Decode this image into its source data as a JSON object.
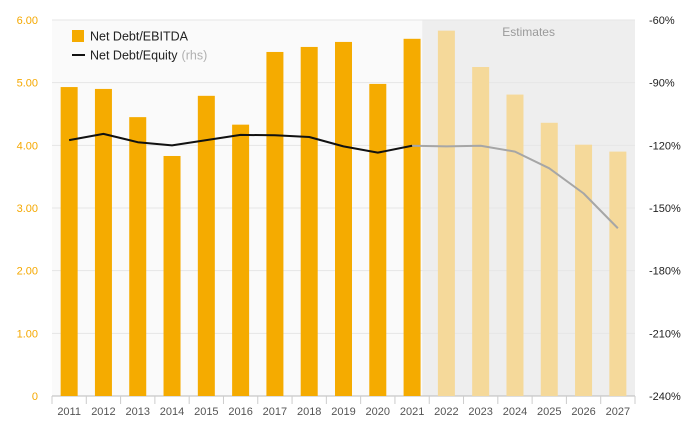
{
  "chart_data": {
    "type": "bar+line",
    "title": "",
    "categories": [
      "2011",
      "2012",
      "2013",
      "2014",
      "2015",
      "2016",
      "2017",
      "2018",
      "2019",
      "2020",
      "2021",
      "2022",
      "2023",
      "2024",
      "2025",
      "2026",
      "2027"
    ],
    "estimate_start_index": 11,
    "estimates_label": "Estimates",
    "series": [
      {
        "name": "Net Debt/EBITDA",
        "type": "bar",
        "axis": "left",
        "values": [
          4.93,
          4.9,
          4.45,
          3.83,
          4.79,
          4.33,
          5.49,
          5.57,
          5.65,
          4.98,
          5.7,
          5.83,
          5.25,
          4.81,
          4.36,
          4.01,
          3.9
        ],
        "color": "#f5ab00",
        "estimate_color": "#f5d99a"
      },
      {
        "name": "Net Debt/Equity",
        "name_suffix": "(rhs)",
        "type": "line",
        "axis": "right",
        "values": [
          -117.5,
          -114.5,
          -118.5,
          -120,
          -117.5,
          -115,
          -115.2,
          -116,
          -120.5,
          -123.5,
          -120.2,
          -120.5,
          -120.2,
          -123,
          -131,
          -143,
          -159.7
        ],
        "color": "#111111",
        "estimate_color": "#a6a6a6"
      }
    ],
    "y_left": {
      "lim": [
        0,
        6
      ],
      "ticks": [
        0,
        1,
        2,
        3,
        4,
        5,
        6
      ],
      "tick_labels": [
        "0",
        "1.00",
        "2.00",
        "3.00",
        "4.00",
        "5.00",
        "6.00"
      ],
      "color": "#f5a800"
    },
    "y_right": {
      "lim": [
        -240,
        -60
      ],
      "ticks": [
        -60,
        -90,
        -120,
        -150,
        -180,
        -210,
        -240
      ],
      "tick_labels": [
        "-60%",
        "-90%",
        "-120%",
        "-150%",
        "-180%",
        "-210%",
        "-240%"
      ]
    },
    "legend": {
      "placement": "top-left",
      "items": [
        {
          "label": "Net Debt/EBITDA",
          "suffix": ""
        },
        {
          "label": "Net Debt/Equity",
          "suffix": "(rhs)"
        }
      ]
    },
    "grid": true
  }
}
